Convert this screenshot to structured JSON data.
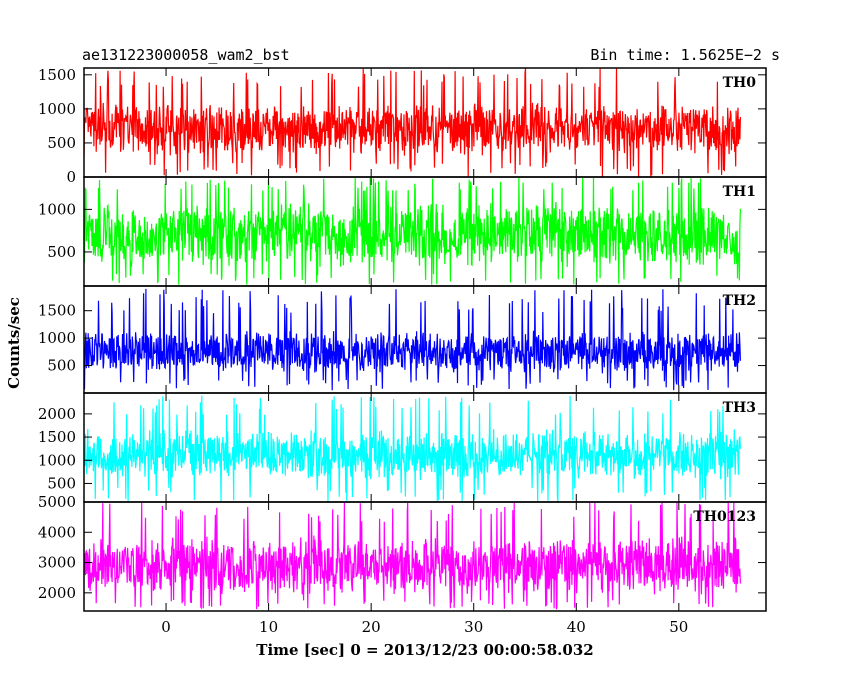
{
  "chart_data": {
    "type": "line",
    "title": "ae131223000058_wam2_bst",
    "bin_time_label": "Bin time: 1.5625E−2 s",
    "xlabel": "Time [sec] 0 = 2013/12/23 00:00:58.032",
    "ylabel": "Counts/sec",
    "xlim": [
      -8,
      58.5
    ],
    "data_x_range": [
      -8,
      56
    ],
    "x_ticks": [
      0,
      10,
      20,
      30,
      40,
      50
    ],
    "x_tick_labels": [
      "0",
      "10",
      "20",
      "30",
      "40",
      "50"
    ],
    "grid": false,
    "panels": [
      {
        "name": "TH0",
        "color": "#ff0000",
        "ylim": [
          0,
          1600
        ],
        "y_ticks": [
          0,
          500,
          1000,
          1500
        ],
        "y_tick_labels": [
          "0",
          "500",
          "1000",
          "1500"
        ],
        "typical_range": [
          300,
          1100
        ],
        "overall_min": 0,
        "overall_max": 1600
      },
      {
        "name": "TH1",
        "color": "#00ff00",
        "ylim": [
          100,
          1380
        ],
        "y_ticks": [
          500,
          1000
        ],
        "y_tick_labels": [
          "500",
          "1000"
        ],
        "typical_range": [
          300,
          1100
        ],
        "overall_min": 100,
        "overall_max": 1380
      },
      {
        "name": "TH2",
        "color": "#0000ff",
        "ylim": [
          0,
          1950
        ],
        "y_ticks": [
          500,
          1000,
          1500
        ],
        "y_tick_labels": [
          "500",
          "1000",
          "1500"
        ],
        "typical_range": [
          350,
          1150
        ],
        "overall_min": 50,
        "overall_max": 1900
      },
      {
        "name": "TH3",
        "color": "#00ffff",
        "ylim": [
          100,
          2450
        ],
        "y_ticks": [
          500,
          1000,
          1500,
          2000
        ],
        "y_tick_labels": [
          "500",
          "1000",
          "1500",
          "2000"
        ],
        "typical_range": [
          550,
          1700
        ],
        "overall_min": 100,
        "overall_max": 2400
      },
      {
        "name": "TH0123",
        "color": "#ff00ff",
        "ylim": [
          1400,
          5000
        ],
        "y_ticks": [
          2000,
          3000,
          4000,
          5000
        ],
        "y_tick_labels": [
          "2000",
          "3000",
          "4000",
          "5000"
        ],
        "typical_range": [
          1900,
          3900
        ],
        "overall_min": 1450,
        "overall_max": 5000
      }
    ]
  }
}
